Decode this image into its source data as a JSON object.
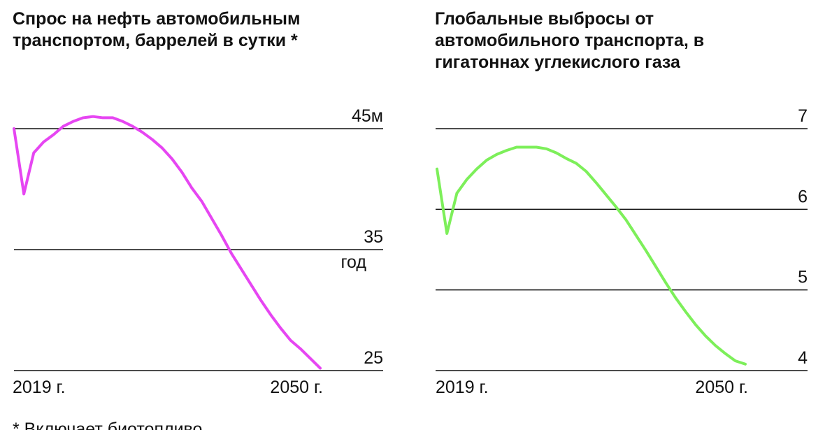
{
  "chart_data": [
    {
      "type": "line",
      "title": "Спрос на нефть автомобильным транспортом, баррелей в сутки *",
      "annotation": "год",
      "x": [
        2019,
        2020,
        2021,
        2022,
        2023,
        2024,
        2025,
        2026,
        2027,
        2028,
        2029,
        2030,
        2031,
        2032,
        2033,
        2034,
        2035,
        2036,
        2037,
        2038,
        2039,
        2040,
        2041,
        2042,
        2043,
        2044,
        2045,
        2046,
        2047,
        2048,
        2049,
        2050
      ],
      "series": [
        {
          "color": "#e646f2",
          "values": [
            45.0,
            39.6,
            43.0,
            43.9,
            44.5,
            45.2,
            45.6,
            45.9,
            46.0,
            45.9,
            45.9,
            45.6,
            45.2,
            44.7,
            44.1,
            43.4,
            42.5,
            41.4,
            40.1,
            39.0,
            37.6,
            36.2,
            34.7,
            33.4,
            32.1,
            30.8,
            29.6,
            28.5,
            27.5,
            26.8,
            26.0,
            25.2
          ]
        }
      ],
      "xlim": [
        2019,
        2050
      ],
      "xticks": [
        {
          "value": 2019,
          "label": "2019 г."
        },
        {
          "value": 2050,
          "label": "2050 г."
        }
      ],
      "ylim": [
        25,
        45
      ],
      "yticks": [
        {
          "value": 45,
          "label": "45м"
        },
        35,
        25
      ],
      "grid": true
    },
    {
      "type": "line",
      "title": "Глобальные выбросы от автомобильного транспорта, в гигатоннах углекислого газа",
      "x": [
        2019,
        2020,
        2021,
        2022,
        2023,
        2024,
        2025,
        2026,
        2027,
        2028,
        2029,
        2030,
        2031,
        2032,
        2033,
        2034,
        2035,
        2036,
        2037,
        2038,
        2039,
        2040,
        2041,
        2042,
        2043,
        2044,
        2045,
        2046,
        2047,
        2048,
        2049,
        2050
      ],
      "series": [
        {
          "color": "#7def5a",
          "values": [
            6.5,
            5.7,
            6.2,
            6.37,
            6.5,
            6.61,
            6.68,
            6.73,
            6.77,
            6.77,
            6.77,
            6.75,
            6.7,
            6.63,
            6.57,
            6.47,
            6.33,
            6.18,
            6.03,
            5.87,
            5.68,
            5.49,
            5.29,
            5.09,
            4.9,
            4.73,
            4.57,
            4.43,
            4.31,
            4.21,
            4.12,
            4.08
          ]
        }
      ],
      "xlim": [
        2019,
        2050
      ],
      "xticks": [
        {
          "value": 2019,
          "label": "2019 г."
        },
        {
          "value": 2050,
          "label": "2050 г."
        }
      ],
      "ylim": [
        4,
        7
      ],
      "yticks": [
        7,
        6,
        5,
        4
      ],
      "grid": true
    }
  ],
  "footnote": "* Включает биотопливо"
}
